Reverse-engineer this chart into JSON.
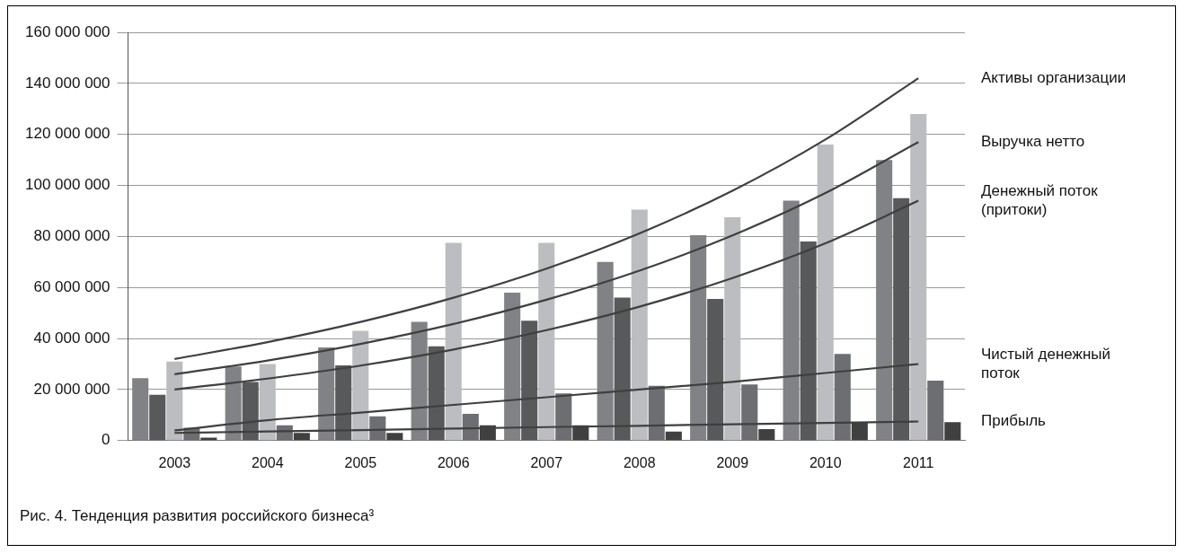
{
  "chart_data": {
    "type": "bar",
    "title": "Рис. 4. Тенденция развития российского бизнеса³",
    "categories": [
      "2003",
      "2004",
      "2005",
      "2006",
      "2007",
      "2008",
      "2009",
      "2010",
      "2011"
    ],
    "series": [
      {
        "color": "#818286",
        "values": [
          24500000.0,
          29000000.0,
          36500000.0,
          46500000.0,
          58000000.0,
          70000000.0,
          80500000.0,
          94000000.0,
          110000000.0
        ]
      },
      {
        "color": "#58595b",
        "values": [
          18000000.0,
          23000000.0,
          29500000.0,
          37000000.0,
          47000000.0,
          56000000.0,
          55500000.0,
          78000000.0,
          95000000.0
        ]
      },
      {
        "color": "#bcbdc0",
        "values": [
          31000000.0,
          30000000.0,
          43000000.0,
          77500000.0,
          77500000.0,
          90500000.0,
          87500000.0,
          116000000.0,
          128000000.0
        ]
      },
      {
        "color": "#6d6e71",
        "values": [
          5000000.0,
          6000000.0,
          9500000.0,
          10500000.0,
          18500000.0,
          21500000.0,
          22000000.0,
          34000000.0,
          23500000.0
        ]
      },
      {
        "color": "#404040",
        "values": [
          1200000.0,
          3000000.0,
          3000000.0,
          6000000.0,
          6000000.0,
          3500000.0,
          4500000.0,
          7000000.0,
          7200000.0
        ]
      },
      {
        "type": "line",
        "name": "Активы организации",
        "color": "#3f3f3f",
        "values": [
          32000000.0,
          38600000.0,
          46500000.0,
          56000000.0,
          67400000.0,
          81200000.0,
          97900000.0,
          118000000.0,
          142000000.0
        ]
      },
      {
        "type": "line",
        "name": "Выручка нетто",
        "color": "#3f3f3f",
        "values": [
          26000000.0,
          31400000.0,
          37900000.0,
          45700000.0,
          55200000.0,
          66600000.0,
          80400000.0,
          97000000.0,
          117000000.0
        ]
      },
      {
        "type": "line",
        "name": "Денежный поток (притоки)",
        "color": "#3f3f3f",
        "values": [
          20000000.0,
          24300000.0,
          29400000.0,
          35700000.0,
          43300000.0,
          52500000.0,
          63700000.0,
          77300000.0,
          94000000.0
        ]
      },
      {
        "type": "line",
        "name": "Чистый денежный поток",
        "color": "#3f3f3f",
        "values": [
          4000000.0,
          8000000.0,
          11000000.0,
          14000000.0,
          17000000.0,
          20000000.0,
          23000000.0,
          26500000.0,
          30000000.0
        ]
      },
      {
        "type": "line",
        "name": "Прибыль",
        "color": "#3f3f3f",
        "values": [
          3000000.0,
          3600000.0,
          4100000.0,
          4700000.0,
          5300000.0,
          5800000.0,
          6400000.0,
          6900000.0,
          7500000.0
        ]
      }
    ],
    "ylim": [
      0,
      160000000
    ],
    "yticks": [
      0,
      20000000,
      40000000,
      60000000,
      80000000,
      100000000,
      120000000,
      140000000,
      160000000
    ],
    "grid": "y",
    "legend": false,
    "marker": "none"
  }
}
